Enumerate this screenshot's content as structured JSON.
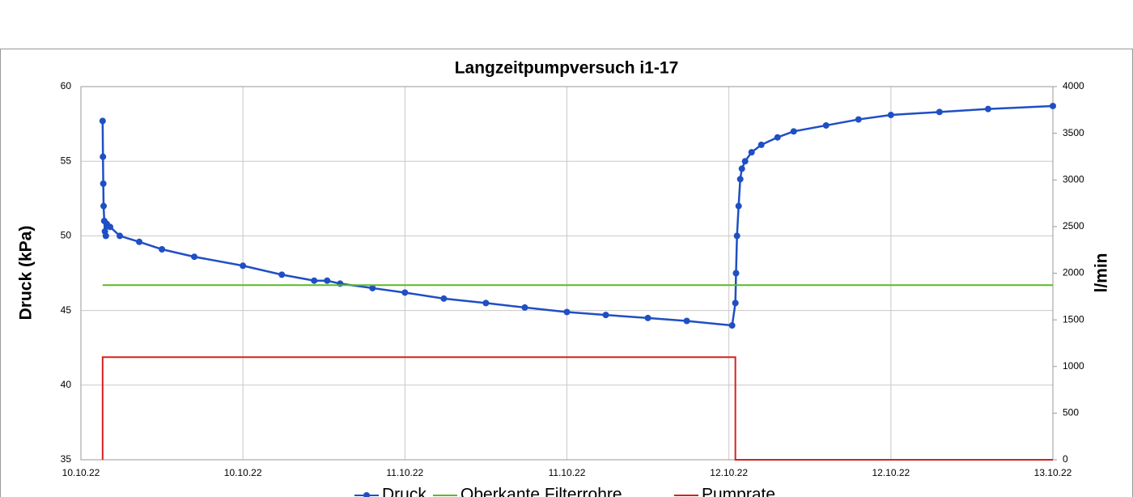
{
  "chart_data": {
    "type": "line",
    "title": "Langzeitpumpversuch i1-17",
    "y_label": "Druck (kPa)",
    "y2_label": "l/min",
    "xlim": [
      0,
      3
    ],
    "xticks": [
      {
        "value": 0,
        "label": "10.10.22"
      },
      {
        "value": 0.5,
        "label": "10.10.22"
      },
      {
        "value": 1,
        "label": "11.10.22"
      },
      {
        "value": 1.5,
        "label": "11.10.22"
      },
      {
        "value": 2,
        "label": "12.10.22"
      },
      {
        "value": 2.5,
        "label": "12.10.22"
      },
      {
        "value": 3,
        "label": "13.10.22"
      }
    ],
    "ylim": [
      35,
      60
    ],
    "yticks": [
      35,
      40,
      45,
      50,
      55,
      60
    ],
    "y2lim": [
      0,
      4000
    ],
    "y2ticks": [
      0,
      500,
      1000,
      1500,
      2000,
      2500,
      3000,
      3500,
      4000
    ],
    "grid": true,
    "legend": "bottom",
    "series": [
      {
        "name": "Druck",
        "color": "#1f4fc4",
        "markers": true,
        "x": [
          0.067,
          0.068,
          0.069,
          0.07,
          0.072,
          0.074,
          0.077,
          0.08,
          0.09,
          0.12,
          0.18,
          0.25,
          0.35,
          0.5,
          0.62,
          0.72,
          0.76,
          0.8,
          0.9,
          1.0,
          1.12,
          1.25,
          1.37,
          1.5,
          1.62,
          1.75,
          1.87,
          2.01,
          2.02,
          2.022,
          2.025,
          2.03,
          2.035,
          2.04,
          2.05,
          2.07,
          2.1,
          2.15,
          2.2,
          2.3,
          2.4,
          2.5,
          2.65,
          2.8,
          3.0
        ],
        "values": [
          57.7,
          55.3,
          53.5,
          52.0,
          51.0,
          50.3,
          50.0,
          50.8,
          50.6,
          50.0,
          49.6,
          49.1,
          48.6,
          48.0,
          47.4,
          47.0,
          47.0,
          46.8,
          46.5,
          46.2,
          45.8,
          45.5,
          45.2,
          44.9,
          44.7,
          44.5,
          44.3,
          44.0,
          45.5,
          47.5,
          50.0,
          52.0,
          53.8,
          54.5,
          55.0,
          55.6,
          56.1,
          56.6,
          57.0,
          57.4,
          57.8,
          58.1,
          58.3,
          58.5,
          58.7
        ]
      },
      {
        "name": "Oberkante Filterrohre",
        "color": "#5cb82a",
        "markers": false,
        "x": [
          0.067,
          3.0
        ],
        "values": [
          46.7,
          46.7
        ]
      },
      {
        "name": "Pumprate",
        "color": "#d62020",
        "markers": false,
        "axis": "y2",
        "x": [
          0.067,
          0.067,
          2.02,
          2.02,
          3.0
        ],
        "values": [
          0,
          1100,
          1100,
          0,
          0
        ]
      }
    ]
  }
}
